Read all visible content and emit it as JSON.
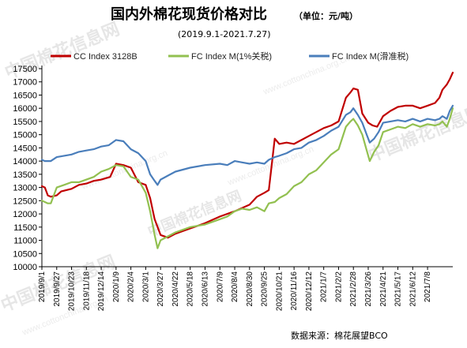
{
  "chart_data": {
    "type": "line",
    "title": "国内外棉花现货价格对比",
    "unit": "（单位：元/吨）",
    "subtitle": "(2019.9.1-2021.7.27)",
    "source": "数据来源：棉花展望BCO",
    "watermark": "中国棉花信息网",
    "watermark_url": "www.cottonchina.org.cn",
    "ylim": [
      10000,
      17500
    ],
    "yticks": [
      10000,
      10500,
      11000,
      11500,
      12000,
      12500,
      13000,
      13500,
      14000,
      14500,
      15000,
      15500,
      16000,
      16500,
      17000,
      17500
    ],
    "grid": false,
    "legend_position": "top",
    "x_categories": [
      "2019/9/1",
      "2019/9/27",
      "2019/10/23",
      "2019/11/18",
      "2019/12/14",
      "2020/1/9",
      "2020/2/4",
      "2020/3/1",
      "2020/3/27",
      "2020/4/22",
      "2020/5/18",
      "2020/6/13",
      "2020/7/9",
      "2020/8/4",
      "2020/8/30",
      "2020/9/25",
      "2020/10/21",
      "2020/11/16",
      "2020/12/12",
      "2021/1/7",
      "2021/2/2",
      "2021/2/28",
      "2021/3/26",
      "2021/4/21",
      "2021/5/17",
      "2021/6/12",
      "2021/7/8"
    ],
    "x_end": 27.7,
    "series": [
      {
        "name": "CC Index 3128B",
        "color": "#c00000",
        "x": [
          0,
          0.2,
          0.4,
          0.6,
          1.0,
          1.3,
          2.0,
          2.5,
          3.0,
          3.5,
          4.0,
          4.6,
          5.0,
          5.5,
          6.0,
          6.5,
          7.0,
          7.3,
          7.6,
          8.0,
          8.5,
          9.0,
          9.5,
          10,
          11,
          12,
          13,
          14,
          14.5,
          15.0,
          15.3,
          15.7,
          16,
          16.5,
          17,
          17.5,
          18,
          18.5,
          19,
          19.5,
          20,
          20.5,
          20.8,
          21.0,
          21.3,
          21.6,
          22.0,
          22.3,
          22.6,
          23,
          23.5,
          24,
          24.5,
          25,
          25.5,
          26,
          26.5,
          26.8,
          27.0,
          27.3,
          27.5,
          27.7
        ],
        "y": [
          13050,
          13000,
          12700,
          12650,
          12700,
          12850,
          12950,
          13100,
          13150,
          13250,
          13300,
          13400,
          13900,
          13850,
          13750,
          13200,
          13100,
          12600,
          11800,
          11200,
          11100,
          11250,
          11350,
          11450,
          11650,
          11900,
          12100,
          12350,
          12650,
          12800,
          12900,
          14850,
          14650,
          14700,
          14650,
          14800,
          14950,
          15100,
          15250,
          15350,
          15500,
          16400,
          16600,
          16750,
          16700,
          15800,
          15450,
          15350,
          15300,
          15700,
          15900,
          16050,
          16100,
          16100,
          16000,
          16100,
          16200,
          16400,
          16700,
          16900,
          17100,
          17350
        ]
      },
      {
        "name": "FC Index M(1%关税)",
        "color": "#92c050",
        "x": [
          0,
          0.2,
          0.4,
          0.6,
          1.0,
          1.5,
          2.0,
          2.5,
          3.0,
          3.5,
          4.0,
          4.5,
          5.0,
          5.5,
          6.0,
          6.5,
          7.0,
          7.3,
          7.6,
          7.8,
          8.0,
          8.5,
          9,
          10,
          11,
          12,
          12.5,
          13,
          13.5,
          14,
          14.5,
          15.0,
          15.3,
          15.7,
          16,
          16.5,
          17,
          17.5,
          18,
          18.5,
          19,
          19.5,
          20,
          20.5,
          20.8,
          21.0,
          21.3,
          21.6,
          21.9,
          22.1,
          22.4,
          22.7,
          23,
          23.5,
          24,
          24.5,
          25,
          25.5,
          26,
          26.5,
          26.8,
          27.0,
          27.3,
          27.5,
          27.7
        ],
        "y": [
          12500,
          12450,
          12400,
          12400,
          13000,
          13100,
          13200,
          13200,
          13300,
          13400,
          13600,
          13700,
          13850,
          13800,
          13400,
          13300,
          12800,
          12100,
          11200,
          10700,
          11000,
          11150,
          11300,
          11500,
          11600,
          11800,
          11900,
          12100,
          12200,
          12150,
          12250,
          12100,
          12400,
          12450,
          12600,
          12750,
          13050,
          13200,
          13500,
          13650,
          13950,
          14250,
          14450,
          15300,
          15500,
          15600,
          15350,
          15000,
          14400,
          14000,
          14350,
          14600,
          15100,
          15200,
          15300,
          15250,
          15400,
          15300,
          15400,
          15350,
          15400,
          15500,
          15300,
          15600,
          16000
        ]
      },
      {
        "name": "FC Index M(滑准税)",
        "color": "#4a7ebb",
        "x": [
          0,
          0.2,
          0.4,
          0.6,
          1.0,
          1.5,
          2.0,
          2.5,
          3.0,
          3.5,
          4.0,
          4.5,
          5.0,
          5.5,
          6.0,
          6.5,
          7.0,
          7.3,
          7.6,
          7.8,
          8.0,
          8.5,
          9,
          10,
          11,
          12,
          12.5,
          13,
          13.5,
          14,
          14.5,
          15.0,
          15.3,
          15.7,
          16,
          16.5,
          17,
          17.5,
          18,
          18.5,
          19,
          19.5,
          20,
          20.5,
          20.8,
          21.0,
          21.3,
          21.6,
          21.9,
          22.1,
          22.4,
          22.7,
          23,
          23.5,
          24,
          24.5,
          25,
          25.5,
          26,
          26.5,
          26.8,
          27.0,
          27.3,
          27.5,
          27.7
        ],
        "y": [
          14050,
          14000,
          14000,
          14000,
          14150,
          14200,
          14250,
          14350,
          14400,
          14450,
          14550,
          14600,
          14800,
          14750,
          14450,
          14300,
          14000,
          13500,
          13250,
          13100,
          13300,
          13450,
          13600,
          13750,
          13850,
          13900,
          13850,
          14000,
          13950,
          13900,
          13950,
          13900,
          14050,
          14150,
          14200,
          14300,
          14450,
          14500,
          14700,
          14800,
          14950,
          15150,
          15300,
          15750,
          15850,
          16000,
          15750,
          15450,
          15000,
          14700,
          14850,
          15100,
          15450,
          15500,
          15550,
          15500,
          15600,
          15500,
          15600,
          15550,
          15600,
          15700,
          15600,
          15900,
          16100
        ]
      }
    ]
  }
}
